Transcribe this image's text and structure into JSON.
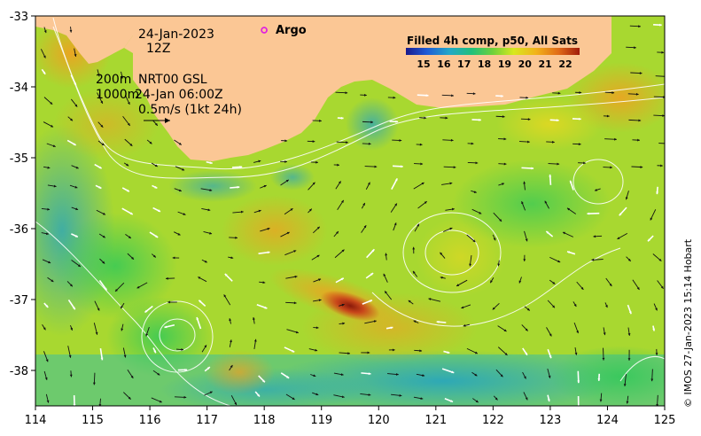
{
  "map": {
    "date_line": "24-Jan-2023",
    "time_line": "12Z",
    "depth_200": "200m",
    "model_name": "NRT00 GSL",
    "depth_1000": "1000m",
    "model_time": "24-Jan 06:00Z",
    "velocity_scale": "0.5m/s (1kt 24h)",
    "argo_label": "Argo",
    "colorbar_title": "Filled 4h comp, p50, All Sats",
    "colorbar_ticks": [
      "15",
      "16",
      "17",
      "18",
      "19",
      "20",
      "21",
      "22"
    ],
    "colorbar_colors": [
      "#1a1a8c",
      "#1e5bd6",
      "#23a8c8",
      "#22c07a",
      "#6ed13a",
      "#d8e81e",
      "#f2b21a",
      "#e06a18",
      "#a01a0a"
    ],
    "credit": "© IMOS 27-Jan-2023 15:14 Hobart",
    "land_color": "#fbc795",
    "x_ticks": [
      "114",
      "115",
      "116",
      "117",
      "118",
      "119",
      "120",
      "121",
      "122",
      "123",
      "124",
      "125"
    ],
    "y_ticks": [
      "-33",
      "-34",
      "-35",
      "-36",
      "-37",
      "-38"
    ],
    "x_range": [
      114,
      125
    ],
    "y_range": [
      -38.5,
      -33
    ],
    "argo_position": [
      118.0,
      -33.2
    ]
  }
}
